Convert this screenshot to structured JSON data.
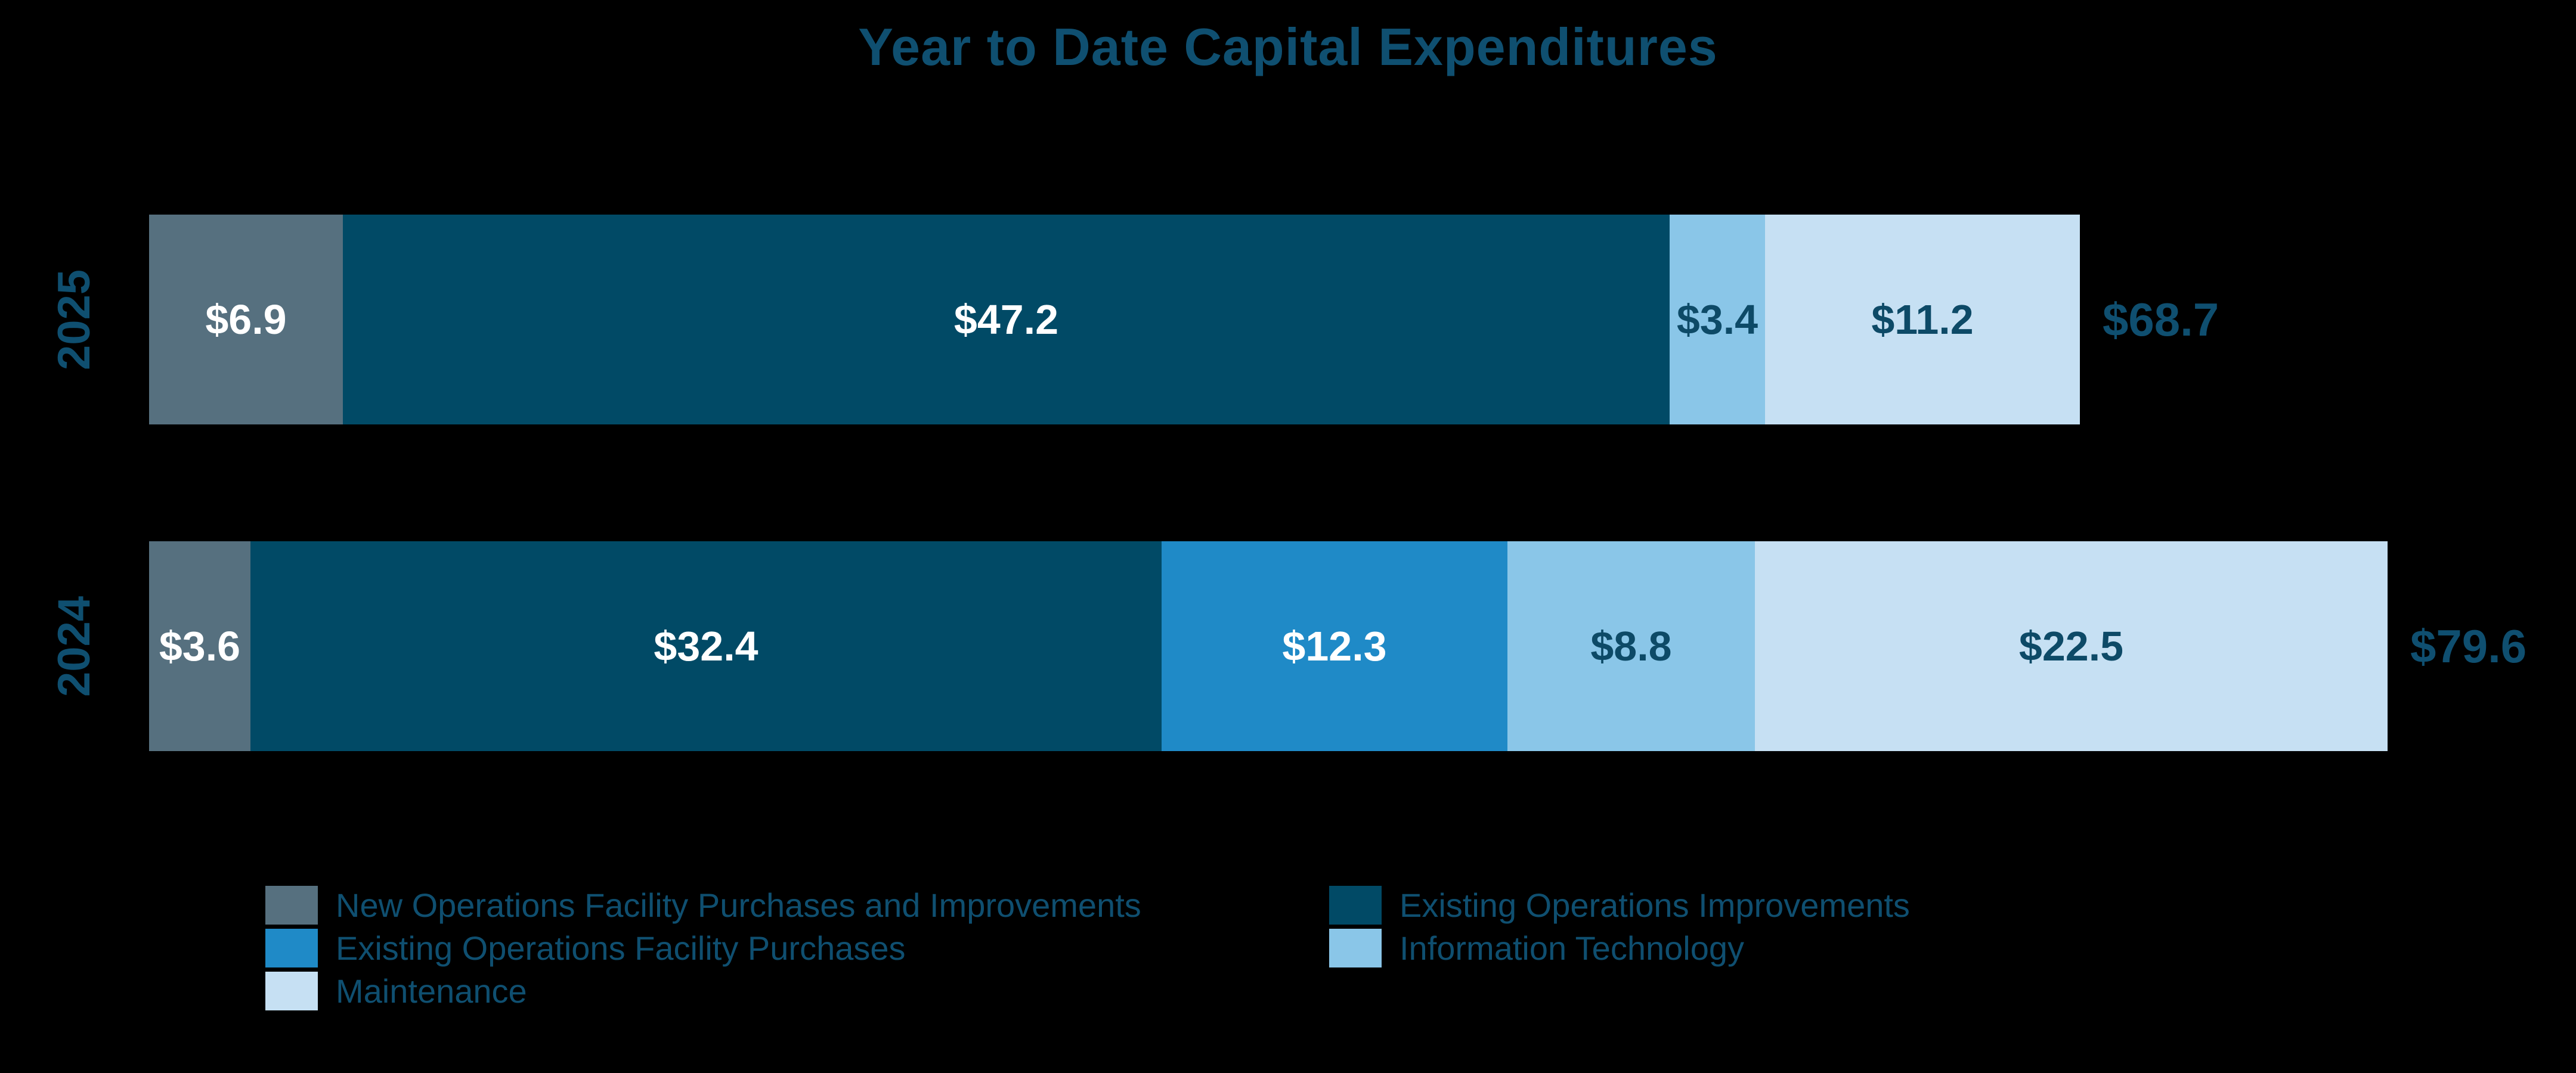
{
  "title": "Year to Date Capital Expenditures",
  "colors": {
    "background": "#000000",
    "text": "#0F4F70",
    "label_on_dark_segment": "#FFFFFF",
    "label_on_light_segment": "#0D4A67"
  },
  "chart_data": {
    "type": "bar",
    "orientation": "horizontal",
    "stacked": true,
    "title": "Year to Date Capital Expenditures",
    "categories": [
      "2025",
      "2024"
    ],
    "value_prefix": "$",
    "series": [
      {
        "name": "New Operations Facility Purchases and Improvements",
        "color": "#56707F",
        "label_color": "#FFFFFF",
        "values": [
          6.9,
          3.6
        ]
      },
      {
        "name": "Existing Operations Improvements",
        "color": "#014A66",
        "label_color": "#FFFFFF",
        "values": [
          47.2,
          32.4
        ]
      },
      {
        "name": "Existing Operations Facility Purchases",
        "color": "#1F8AC7",
        "label_color": "#FFFFFF",
        "values": [
          0,
          12.3
        ]
      },
      {
        "name": "Information Technology",
        "color": "#8AC6E8",
        "label_color": "#0D4A67",
        "values": [
          3.4,
          8.8
        ]
      },
      {
        "name": "Maintenance",
        "color": "#C6E0F3",
        "label_color": "#0D4A67",
        "values": [
          11.2,
          22.5
        ]
      }
    ],
    "totals": [
      68.7,
      79.6
    ],
    "total_labels": [
      "$68.7",
      "$79.6"
    ],
    "segment_labels": {
      "2025": [
        "$6.9",
        "$47.2",
        "$3.4",
        "$11.2"
      ],
      "2024": [
        "$3.6",
        "$32.4",
        "$12.3",
        "$8.8",
        "$22.5"
      ]
    },
    "legend_position": "bottom",
    "legend_columns": 2,
    "grid": false,
    "axes_visible": false
  }
}
